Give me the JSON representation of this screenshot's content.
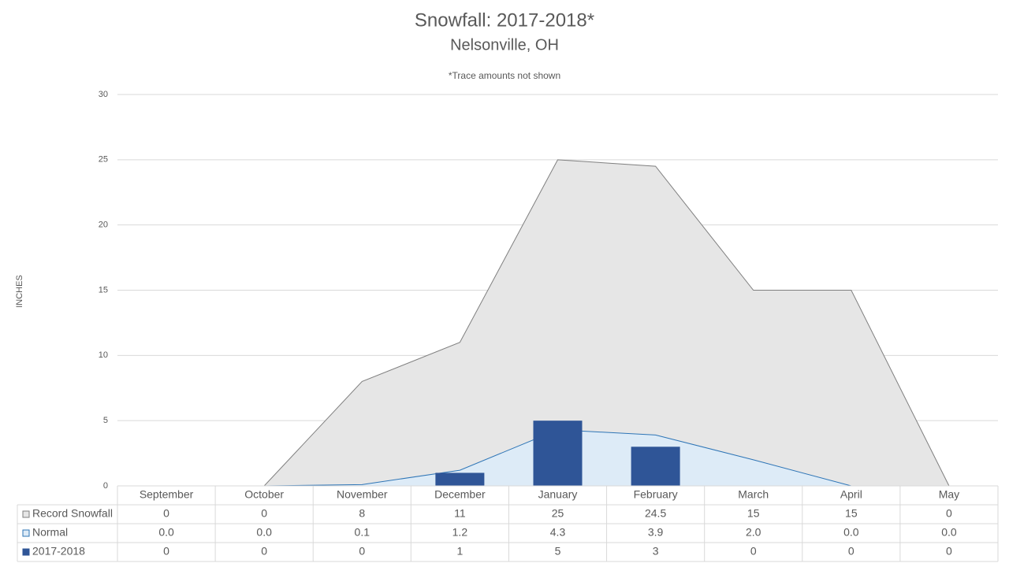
{
  "chart_data": {
    "type": "combo",
    "title": "Snowfall: 2017-2018*",
    "subtitle": "Nelsonville, OH",
    "note": "*Trace amounts not shown",
    "y_label": "INCHES",
    "categories": [
      "September",
      "October",
      "November",
      "December",
      "January",
      "February",
      "March",
      "April",
      "May"
    ],
    "series": [
      {
        "name": "Record Snowfall",
        "type": "area",
        "color": "#e6e6e6",
        "stroke": "#7f7f7f",
        "values": [
          0,
          0,
          8,
          11,
          25,
          24.5,
          15,
          15,
          0
        ]
      },
      {
        "name": "Normal",
        "type": "area",
        "color": "#ddebf7",
        "stroke": "#2e75b6",
        "values": [
          0,
          0,
          0.1,
          1.2,
          4.3,
          3.9,
          2,
          0,
          0
        ],
        "value_labels": [
          "0.0",
          "0.0",
          "0.1",
          "1.2",
          "4.3",
          "3.9",
          "2.0",
          "0.0",
          "0.0"
        ]
      },
      {
        "name": "2017-2018",
        "type": "bar",
        "color": "#2f5597",
        "values": [
          0,
          0,
          0,
          1,
          5,
          3,
          0,
          0,
          0
        ]
      }
    ],
    "ylim": [
      0,
      30
    ],
    "yticks": [
      0,
      5,
      10,
      15,
      20,
      25,
      30
    ],
    "grid": true
  }
}
